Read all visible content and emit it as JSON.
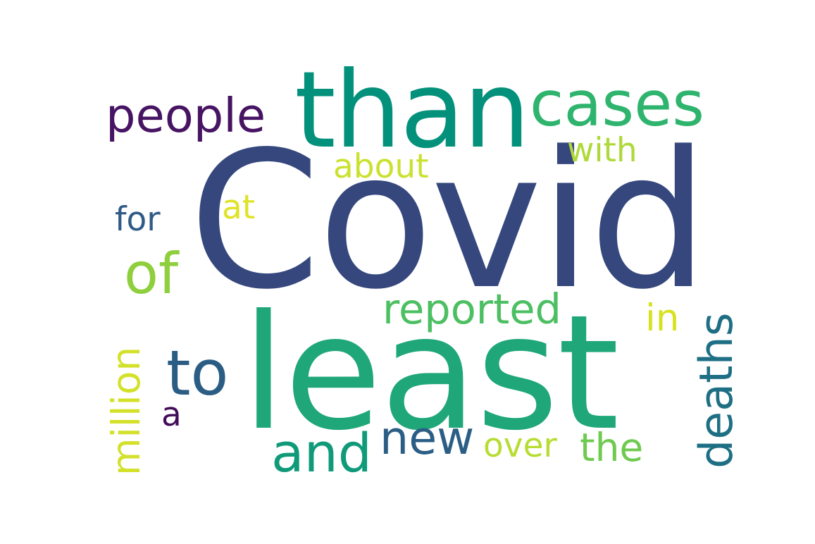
{
  "words": {
    "covid": {
      "text": "Covid",
      "color": "#35477d"
    },
    "least": {
      "text": "least",
      "color": "#1fa77a"
    },
    "than": {
      "text": "than",
      "color": "#03917c"
    },
    "cases": {
      "text": "cases",
      "color": "#2fb46e"
    },
    "people": {
      "text": "people",
      "color": "#471463"
    },
    "of": {
      "text": "of",
      "color": "#8fcf3d"
    },
    "to": {
      "text": "to",
      "color": "#2b5d84"
    },
    "and": {
      "text": "and",
      "color": "#109a79"
    },
    "new": {
      "text": "new",
      "color": "#2c5e85"
    },
    "reported": {
      "text": "reported",
      "color": "#4cbf62"
    },
    "about": {
      "text": "about",
      "color": "#cbe12f"
    },
    "with": {
      "text": "with",
      "color": "#aed93a"
    },
    "at": {
      "text": "at",
      "color": "#e0e324"
    },
    "for": {
      "text": "for",
      "color": "#2f5b86"
    },
    "a": {
      "text": "a",
      "color": "#420c5a"
    },
    "over": {
      "text": "over",
      "color": "#b7dd34"
    },
    "the": {
      "text": "the",
      "color": "#6fca50"
    },
    "in": {
      "text": "in",
      "color": "#d7e21e"
    },
    "million": {
      "text": "million",
      "color": "#d3e12a"
    },
    "deaths": {
      "text": "deaths",
      "color": "#1e6f84"
    }
  }
}
